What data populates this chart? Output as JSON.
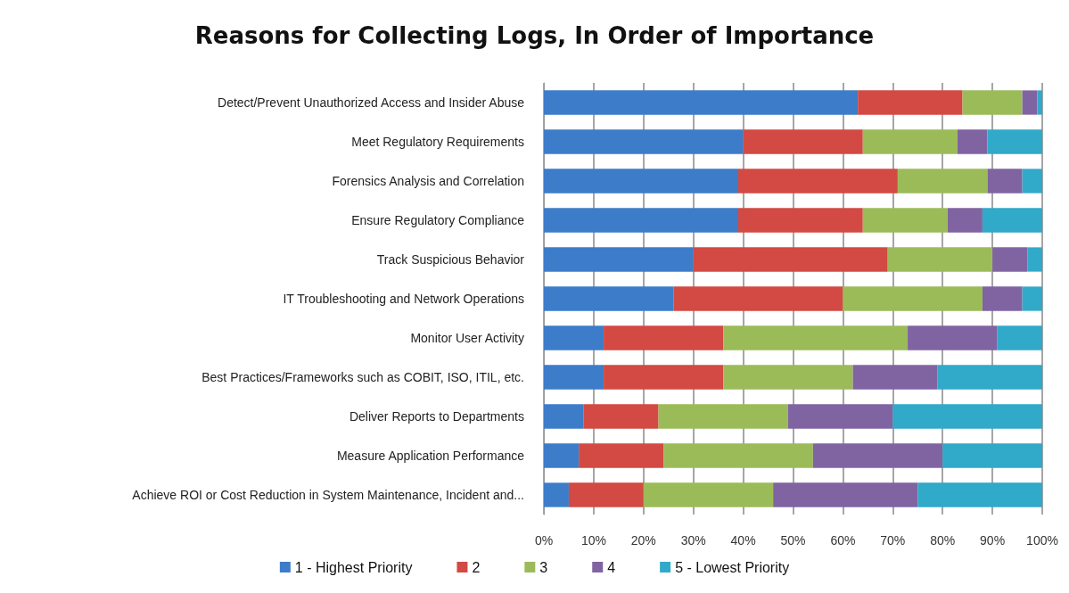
{
  "chart_data": {
    "type": "bar",
    "title": "Reasons for Collecting Logs, In Order of Importance",
    "orientation": "horizontal",
    "stacked": true,
    "categories": [
      "Detect/Prevent Unauthorized Access and Insider Abuse",
      "Meet Regulatory Requirements",
      "Forensics Analysis and Correlation",
      "Ensure Regulatory Compliance",
      "Track Suspicious Behavior",
      "IT Troubleshooting and Network Operations",
      "Monitor User Activity",
      "Best Practices/Frameworks such as COBIT, ISO, ITIL, etc.",
      "Deliver Reports to Departments",
      "Measure Application Performance",
      "Achieve ROI or Cost Reduction in System Maintenance, Incident and..."
    ],
    "series": [
      {
        "name": "1 - Highest Priority",
        "color": "#3d7cc9",
        "values": [
          63,
          40,
          39,
          39,
          30,
          26,
          12,
          12,
          8,
          7,
          5
        ]
      },
      {
        "name": "2",
        "color": "#d24a43",
        "values": [
          21,
          24,
          32,
          25,
          39,
          34,
          24,
          24,
          15,
          17,
          15
        ]
      },
      {
        "name": "3",
        "color": "#9bbb59",
        "values": [
          12,
          19,
          18,
          17,
          21,
          28,
          37,
          26,
          26,
          30,
          26
        ]
      },
      {
        "name": "4",
        "color": "#8064a2",
        "values": [
          3,
          6,
          7,
          7,
          7,
          8,
          18,
          17,
          21,
          26,
          29
        ]
      },
      {
        "name": "5 - Lowest Priority",
        "color": "#31a9c9",
        "values": [
          1,
          11,
          4,
          12,
          3,
          4,
          9,
          21,
          30,
          20,
          25
        ]
      }
    ],
    "xlim": [
      0,
      100
    ],
    "xticks": [
      {
        "value": 0,
        "label": "0%"
      },
      {
        "value": 10,
        "label": "10%"
      },
      {
        "value": 20,
        "label": "20%"
      },
      {
        "value": 30,
        "label": "30%"
      },
      {
        "value": 40,
        "label": "40%"
      },
      {
        "value": 50,
        "label": "50%"
      },
      {
        "value": 60,
        "label": "60%"
      },
      {
        "value": 70,
        "label": "70%"
      },
      {
        "value": 80,
        "label": "80%"
      },
      {
        "value": 90,
        "label": "90%"
      },
      {
        "value": 100,
        "label": "100%"
      }
    ],
    "grid": "x",
    "legend": "bottom"
  }
}
